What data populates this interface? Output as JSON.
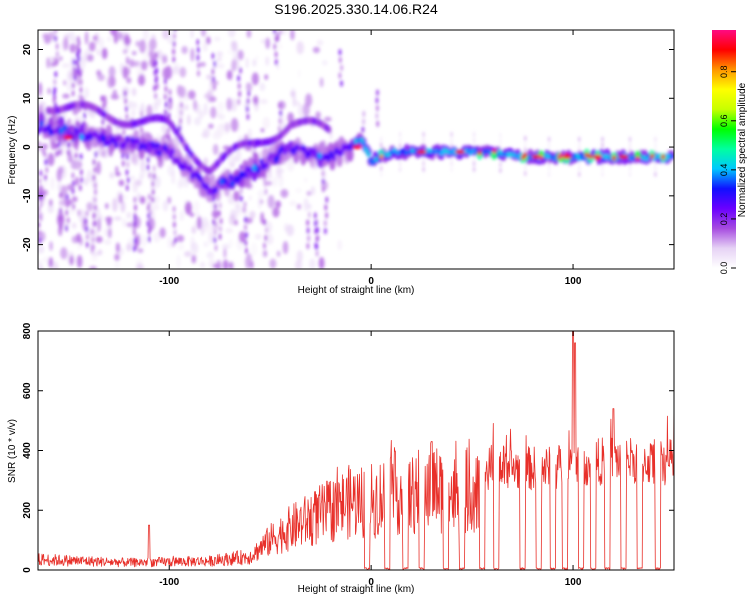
{
  "title": "S196.2025.330.14.06.R24",
  "colors": {
    "snr_line": "#e8302a",
    "frame": "#000000"
  },
  "chart_data": [
    {
      "type": "heatmap",
      "name": "spectrogram",
      "xlabel": "Height of straight line (km)",
      "ylabel": "Frequency (Hz)",
      "xlim": [
        -165,
        150
      ],
      "ylim": [
        -25,
        24
      ],
      "xticks": [
        -100,
        0,
        100
      ],
      "yticks": [
        -20,
        -10,
        0,
        10,
        20
      ],
      "colorbar": {
        "label": "Normalized spectral amplitude",
        "range": [
          0,
          0.97
        ],
        "ticks": [
          0.0,
          0.2,
          0.4,
          0.6,
          0.8
        ],
        "colormap": [
          "#ffffff",
          "#e6d2f5",
          "#a64be0",
          "#6a00ff",
          "#1010ff",
          "#00c8ff",
          "#00ffa0",
          "#00ff00",
          "#c8ff00",
          "#ffff00",
          "#ff9600",
          "#ff0000",
          "#ff0a82"
        ]
      },
      "ridge": {
        "description_points_x": [
          -160,
          -140,
          -120,
          -100,
          -80,
          -60,
          -40,
          -20,
          -10,
          -5,
          0,
          10,
          20,
          40,
          60,
          80,
          100,
          120,
          148
        ],
        "description_points_f": [
          4,
          2,
          1,
          -1,
          -9,
          -5,
          0,
          -2,
          0,
          2,
          -3,
          -1,
          -1,
          -1,
          -1,
          -2,
          -2,
          -2,
          -2
        ]
      }
    },
    {
      "type": "line",
      "name": "snr",
      "xlabel": "Height of straight line (km)",
      "ylabel": "SNR (10 * v/v)",
      "xlim": [
        -165,
        150
      ],
      "ylim": [
        0,
        800
      ],
      "xticks": [
        -100,
        0,
        100
      ],
      "yticks": [
        0,
        200,
        400,
        600,
        800
      ],
      "envelope": {
        "x": [
          -165,
          -120,
          -80,
          -60,
          -50,
          -40,
          -30,
          -20,
          -10,
          0,
          10,
          20,
          30,
          40,
          50,
          60,
          70,
          80,
          90,
          100,
          110,
          120,
          130,
          140,
          150
        ],
        "y": [
          35,
          25,
          30,
          45,
          100,
          140,
          170,
          200,
          230,
          230,
          260,
          250,
          280,
          250,
          270,
          350,
          340,
          340,
          340,
          360,
          360,
          370,
          370,
          360,
          360
        ]
      },
      "spikes": [
        {
          "x": 100,
          "y": 800
        },
        {
          "x": 101,
          "y": 760
        },
        {
          "x": 30,
          "y": 430
        },
        {
          "x": 120,
          "y": 540
        },
        {
          "x": -110,
          "y": 150
        }
      ],
      "dropouts_x": [
        -2,
        8,
        17,
        25,
        37,
        45,
        55,
        62,
        75,
        83,
        90,
        96,
        104,
        110,
        117,
        125,
        133,
        142
      ]
    }
  ]
}
